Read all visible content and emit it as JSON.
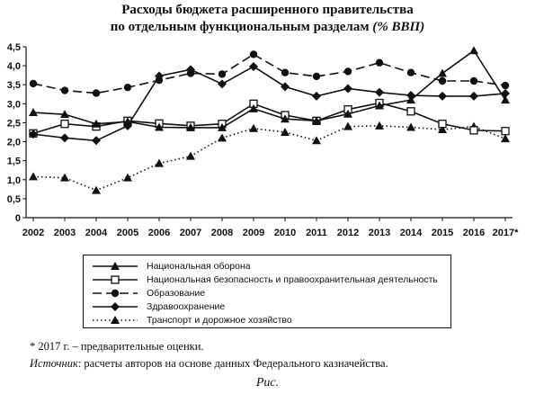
{
  "chart_data": {
    "type": "line",
    "title_line1": "Расходы бюджета расширенного правительства",
    "title_line2": "по отдельным функциональным разделам",
    "title_unit": "(% ВВП)",
    "categories": [
      "2002",
      "2003",
      "2004",
      "2005",
      "2006",
      "2007",
      "2008",
      "2009",
      "2010",
      "2011",
      "2012",
      "2013",
      "2014",
      "2015",
      "2016",
      "2017*"
    ],
    "ylim": [
      0,
      4.5
    ],
    "yticks": [
      "0",
      "0,5",
      "1,0",
      "1,5",
      "2,0",
      "2,5",
      "3,0",
      "3,5",
      "4,0",
      "4,5"
    ],
    "grid": false,
    "series": [
      {
        "name": "Национальная оборона",
        "marker": "triangle",
        "dash": "solid",
        "values": [
          2.77,
          2.72,
          2.47,
          2.53,
          2.38,
          2.37,
          2.37,
          2.87,
          2.6,
          2.55,
          2.73,
          2.95,
          3.1,
          3.8,
          4.4,
          3.1
        ]
      },
      {
        "name": "Национальная безопасность и правоохранительная деятельность",
        "marker": "square-open",
        "dash": "solid",
        "values": [
          2.22,
          2.47,
          2.4,
          2.55,
          2.48,
          2.42,
          2.47,
          3.0,
          2.7,
          2.55,
          2.85,
          3.02,
          2.8,
          2.47,
          2.3,
          2.28
        ]
      },
      {
        "name": "Образование",
        "marker": "circle",
        "dash": "longdash",
        "values": [
          3.53,
          3.35,
          3.28,
          3.43,
          3.62,
          3.8,
          3.78,
          4.3,
          3.82,
          3.72,
          3.85,
          4.08,
          3.82,
          3.6,
          3.6,
          3.48
        ]
      },
      {
        "name": "Здравоохранение",
        "marker": "diamond",
        "dash": "solid",
        "values": [
          2.2,
          2.1,
          2.03,
          2.42,
          3.73,
          3.9,
          3.52,
          3.98,
          3.45,
          3.2,
          3.4,
          3.3,
          3.22,
          3.2,
          3.2,
          3.27
        ]
      },
      {
        "name": "Транспорт и дорожное хозяйство",
        "marker": "triangle",
        "dash": "dotted",
        "values": [
          1.08,
          1.05,
          0.72,
          1.05,
          1.43,
          1.62,
          2.1,
          2.35,
          2.25,
          2.03,
          2.4,
          2.42,
          2.38,
          2.32,
          2.4,
          2.08
        ]
      }
    ]
  },
  "note": "* 2017 г. – предварительные оценки.",
  "source_label": "Источник",
  "source_text": ": расчеты авторов на основе данных Федерального казначейства.",
  "caption": "Рис."
}
